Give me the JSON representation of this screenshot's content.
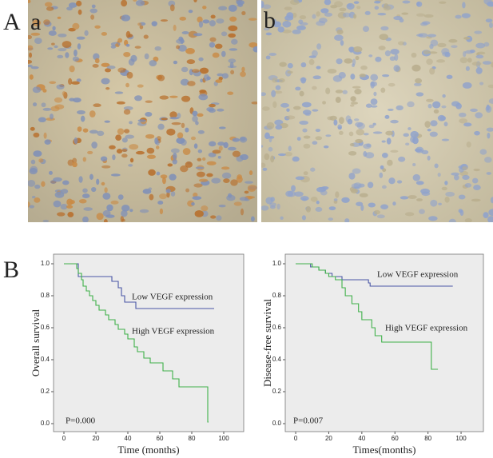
{
  "figure_labels": [
    "A",
    "a",
    "b",
    "B"
  ],
  "chart_data": [
    {
      "type": "step",
      "ylabel": "Overall survival",
      "xlabel": "Time (months)",
      "annotations": [
        "Low VEGF expression",
        "High VEGF expression",
        "P=0.000"
      ],
      "xlim": [
        -6.5,
        112.5
      ],
      "ylim": [
        -0.05,
        1.06
      ],
      "xticks": [
        0,
        20,
        40,
        60,
        80,
        100
      ],
      "yticks": [
        {
          "value": 0,
          "label": "0.0"
        },
        0.2,
        0.4,
        0.6,
        0.8,
        {
          "value": 1,
          "label": "1.0"
        }
      ],
      "series": [
        {
          "name": "Low VEGF expression",
          "color": "#4a56a6",
          "x": [
            0,
            9,
            30,
            34,
            36,
            38,
            45,
            94
          ],
          "values": [
            1,
            0.92,
            0.89,
            0.85,
            0.8,
            0.76,
            0.72,
            0.72
          ]
        },
        {
          "name": "High VEGF expression",
          "color": "#3fb14a",
          "x": [
            0,
            8,
            9,
            11,
            12,
            14,
            16,
            18,
            20,
            22,
            26,
            28,
            32,
            34,
            38,
            40,
            44,
            46,
            50,
            54,
            62,
            68,
            72,
            90,
            90.5
          ],
          "values": [
            1,
            0.97,
            0.94,
            0.9,
            0.86,
            0.83,
            0.8,
            0.77,
            0.74,
            0.71,
            0.68,
            0.65,
            0.62,
            0.59,
            0.56,
            0.53,
            0.48,
            0.45,
            0.41,
            0.38,
            0.33,
            0.28,
            0.23,
            0.01,
            0.01
          ]
        }
      ]
    },
    {
      "type": "step",
      "ylabel": "Disease-free survival",
      "xlabel": "Times(months)",
      "annotations": [
        "Low VEGF expression",
        "High VEGF expression",
        "P=0.007"
      ],
      "xlim": [
        -6.3,
        113.5
      ],
      "ylim": [
        -0.05,
        1.06
      ],
      "xticks": [
        0,
        20,
        40,
        60,
        80,
        100
      ],
      "yticks": [
        {
          "value": 0,
          "label": "0.0"
        },
        0.2,
        0.4,
        0.6,
        0.8,
        {
          "value": 1,
          "label": "1.0"
        }
      ],
      "series": [
        {
          "name": "Low VEGF expression",
          "color": "#4a56a6",
          "x": [
            0,
            9,
            14,
            18,
            22,
            28,
            44,
            45,
            95
          ],
          "values": [
            1,
            0.98,
            0.96,
            0.94,
            0.92,
            0.9,
            0.88,
            0.86,
            0.86
          ]
        },
        {
          "name": "High VEGF expression",
          "color": "#3fb14a",
          "x": [
            0,
            10,
            14,
            18,
            20,
            24,
            28,
            30,
            34,
            38,
            40,
            46,
            48,
            52,
            82,
            86
          ],
          "values": [
            1,
            0.98,
            0.96,
            0.94,
            0.92,
            0.9,
            0.85,
            0.8,
            0.75,
            0.7,
            0.65,
            0.6,
            0.55,
            0.51,
            0.34,
            0.34
          ]
        }
      ]
    }
  ]
}
